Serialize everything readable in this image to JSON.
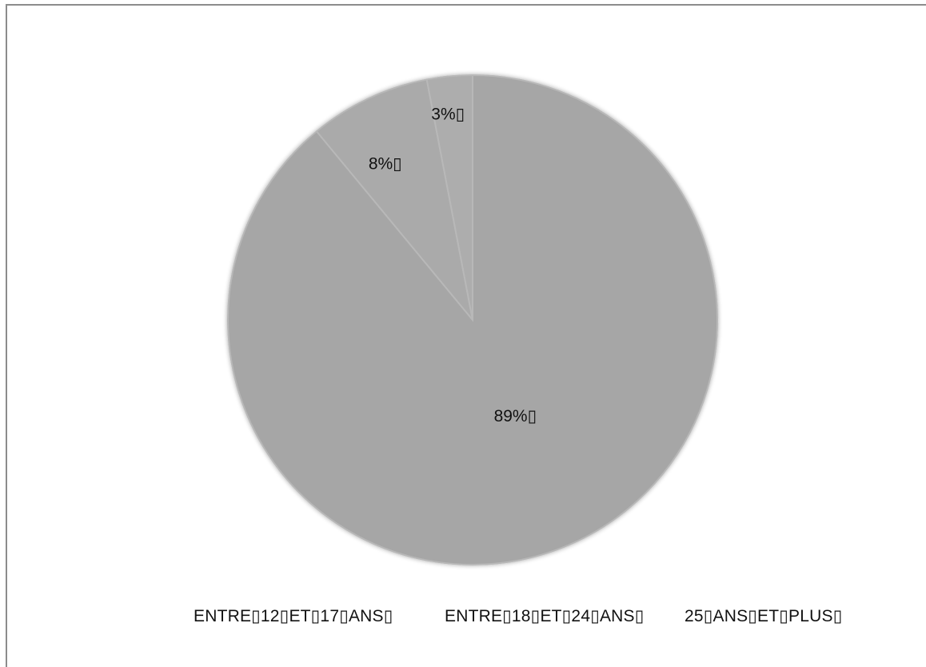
{
  "chart_data": {
    "type": "pie",
    "title": "",
    "categories": [
      "ENTRE▯12▯ET▯17▯ANS▯",
      "ENTRE▯18▯ET▯24▯ANS▯",
      "25▯ANS▯ET▯PLUS▯"
    ],
    "values": [
      89,
      8,
      3
    ],
    "data_labels": [
      "89%▯",
      "8%▯",
      "3%▯"
    ],
    "colors": [
      "#a6a6a6",
      "#aaaaaa",
      "#adadad"
    ],
    "slice_border_color": "#b8b8b8",
    "legend_placement": "bottom",
    "start_angle_deg": 0,
    "direction": "clockwise"
  }
}
